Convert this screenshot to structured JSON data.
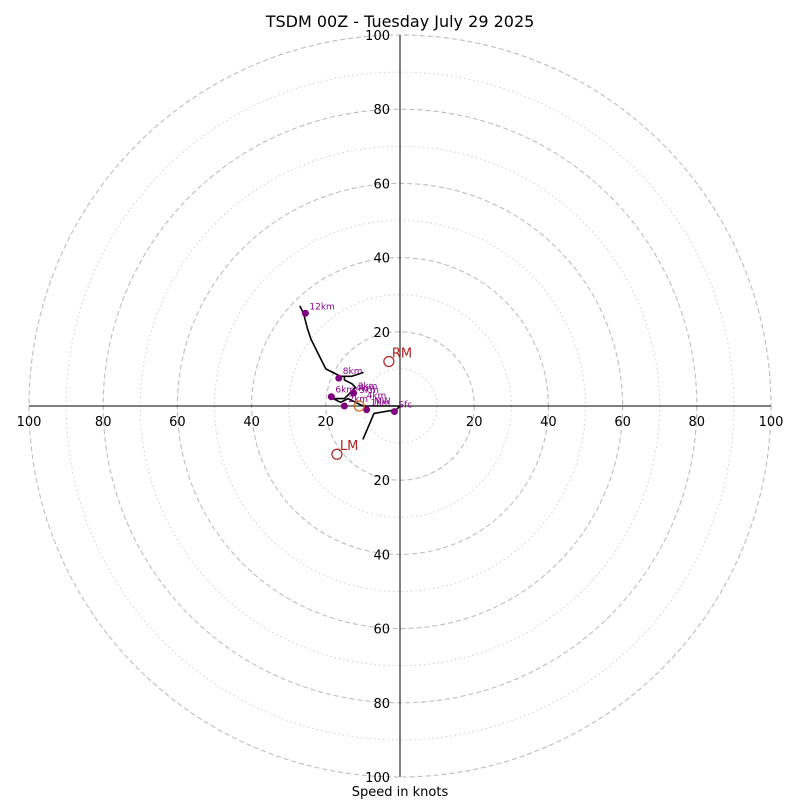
{
  "chart_data": {
    "type": "hodograph",
    "title": "TSDM 00Z - Tuesday July 29 2025",
    "xlabel": "Speed in knots",
    "max_speed": 100,
    "ring_ticks": [
      "20",
      "40",
      "60",
      "80",
      "100"
    ],
    "major_ring_values": [
      20,
      40,
      60,
      80,
      100
    ],
    "minor_ring_values": [
      10,
      30,
      50,
      70,
      90
    ],
    "hodograph_trace": {
      "color": "#000000",
      "points": [
        [
          -10,
          -9
        ],
        [
          -7,
          -2
        ],
        [
          -1,
          -1
        ],
        [
          0,
          0
        ],
        [
          -9,
          0
        ],
        [
          -9,
          0
        ],
        [
          -10,
          0
        ],
        [
          -12,
          1
        ],
        [
          -14,
          2
        ],
        [
          -16,
          1
        ],
        [
          -18,
          2
        ],
        [
          -19,
          3
        ],
        [
          -18,
          2
        ],
        [
          -17,
          2
        ],
        [
          -15,
          2
        ],
        [
          -14,
          3
        ],
        [
          -13,
          4
        ],
        [
          -12,
          5
        ],
        [
          -13,
          6
        ],
        [
          -15,
          7
        ],
        [
          -15,
          8
        ],
        [
          -13,
          8
        ],
        [
          -10,
          9
        ],
        [
          -13,
          8
        ],
        [
          -16,
          8
        ],
        [
          -18,
          9
        ],
        [
          -20,
          10
        ],
        [
          -22,
          14
        ],
        [
          -24,
          18
        ],
        [
          -25,
          21
        ],
        [
          -26,
          25
        ],
        [
          -27,
          27
        ]
      ]
    },
    "height_markers": [
      {
        "label": "Sfc",
        "u": -1.5,
        "v": -1.5
      },
      {
        "label": "1km",
        "u": -9,
        "v": -1
      },
      {
        "label": "2km",
        "u": -15,
        "v": 0
      },
      {
        "label": "3km",
        "u": -12.5,
        "v": 3.5
      },
      {
        "label": "6km",
        "u": -18.5,
        "v": 2.5
      },
      {
        "label": "8km",
        "u": -16.5,
        "v": 7.5
      },
      {
        "label": "12km",
        "u": -25.5,
        "v": 25
      }
    ],
    "extra_labels": [
      {
        "label": "4km",
        "u": -9,
        "v": 2
      },
      {
        "label": "MW",
        "u": -7,
        "v": 0.5
      },
      {
        "label": "5km",
        "u": -11,
        "v": 3.5
      },
      {
        "label": "4km",
        "u": -12,
        "v": 4
      }
    ],
    "storm_motions": [
      {
        "label": "RM",
        "u": -3,
        "v": 12,
        "color": "#b22222"
      },
      {
        "label": "LM",
        "u": -17,
        "v": -13,
        "color": "#b22222"
      },
      {
        "label": "",
        "u": -11,
        "v": 0,
        "color": "#d2691e"
      }
    ]
  }
}
